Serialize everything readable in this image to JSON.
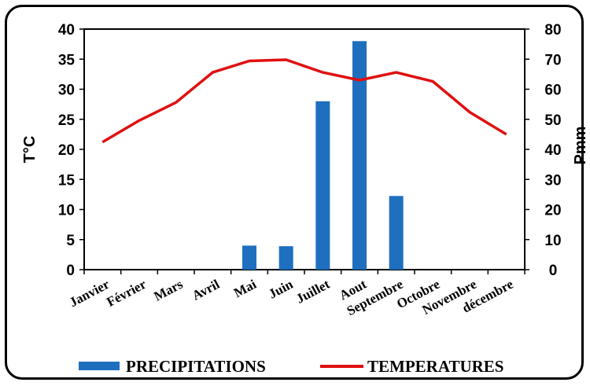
{
  "chart_data": {
    "type": "bar",
    "categories": [
      "Janvier",
      "Février",
      "Mars",
      "Avril",
      "Mai",
      "Juin",
      "Juillet",
      "Aout",
      "Septembre",
      "Octobre",
      "Novembre",
      "décembre"
    ],
    "series": [
      {
        "name": "PRECIPITATIONS",
        "type": "bar",
        "axis": "right",
        "color": "#1f6fbf",
        "values": [
          0,
          0,
          0,
          0,
          8,
          7.8,
          56,
          76,
          24.5,
          0,
          0,
          0
        ]
      },
      {
        "name": "TEMPERATURES",
        "type": "line",
        "axis": "left",
        "color": "#e01010",
        "values": [
          21.2,
          24.8,
          27.8,
          32.8,
          34.7,
          34.9,
          32.8,
          31.5,
          32.8,
          31.3,
          26.2,
          22.5
        ]
      }
    ],
    "ylabel": "T°C",
    "ylim": [
      0,
      40
    ],
    "yticks": [
      0,
      5,
      10,
      15,
      20,
      25,
      30,
      35,
      40
    ],
    "y2label": "Pmm",
    "y2lim": [
      0,
      80
    ],
    "y2ticks": [
      0,
      10,
      20,
      30,
      40,
      50,
      60,
      70,
      80
    ],
    "legend": "bottom",
    "grid": false
  }
}
